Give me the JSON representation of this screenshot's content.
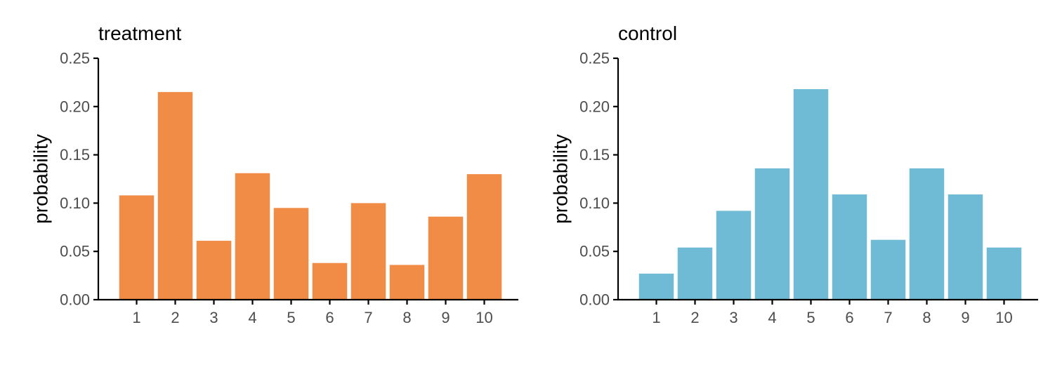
{
  "figure": {
    "background": "#ffffff"
  },
  "chart_data": [
    {
      "type": "bar",
      "title": "treatment",
      "xlabel": "",
      "ylabel": "probability",
      "categories": [
        "1",
        "2",
        "3",
        "4",
        "5",
        "6",
        "7",
        "8",
        "9",
        "10"
      ],
      "values": [
        0.108,
        0.215,
        0.061,
        0.131,
        0.095,
        0.038,
        0.1,
        0.036,
        0.086,
        0.13
      ],
      "ylim": [
        0,
        0.25
      ],
      "yticks": [
        "0.00",
        "0.05",
        "0.10",
        "0.15",
        "0.20",
        "0.25"
      ],
      "color": "#F08C46",
      "grid": false,
      "legend": "none"
    },
    {
      "type": "bar",
      "title": "control",
      "xlabel": "",
      "ylabel": "probability",
      "categories": [
        "1",
        "2",
        "3",
        "4",
        "5",
        "6",
        "7",
        "8",
        "9",
        "10"
      ],
      "values": [
        0.027,
        0.054,
        0.092,
        0.136,
        0.218,
        0.109,
        0.062,
        0.136,
        0.109,
        0.054
      ],
      "ylim": [
        0,
        0.25
      ],
      "yticks": [
        "0.00",
        "0.05",
        "0.10",
        "0.15",
        "0.20",
        "0.25"
      ],
      "color": "#6FBAD4",
      "grid": false,
      "legend": "none"
    }
  ]
}
